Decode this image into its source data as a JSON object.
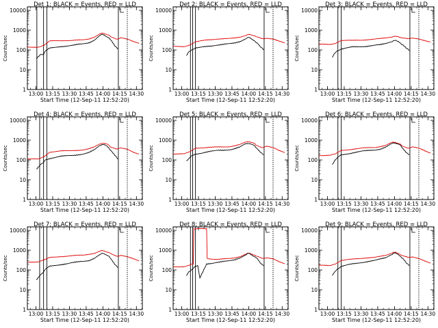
{
  "chart_data": {
    "type": "line",
    "layout": "3x3 grid",
    "shared": {
      "title_template": "Det {n}; BLACK = Events, RED = LLD",
      "xlabel": "Start Time (12-Sep-11 12:52:20)",
      "ylabel": "Counts/sec",
      "y_scale": "log",
      "ylim": [
        1,
        15000
      ],
      "x_units": "minutes after 12:52:20",
      "xlim": [
        0,
        103
      ],
      "x_ticks": [
        {
          "value": 7.67,
          "label": "13:00"
        },
        {
          "value": 22.67,
          "label": "13:15"
        },
        {
          "value": 37.67,
          "label": "13:30"
        },
        {
          "value": 52.67,
          "label": "13:45"
        },
        {
          "value": 67.67,
          "label": "14:00"
        },
        {
          "value": 82.67,
          "label": "14:15"
        },
        {
          "value": 97.67,
          "label": "14:30"
        }
      ],
      "y_ticks": [
        {
          "value": 1,
          "label": "1"
        },
        {
          "value": 10,
          "label": "10"
        },
        {
          "value": 100,
          "label": "100"
        },
        {
          "value": 1000,
          "label": "1000"
        },
        {
          "value": 10000,
          "label": "10000"
        }
      ],
      "legend": [
        {
          "name": "Events",
          "color": "#000000"
        },
        {
          "name": "LLD",
          "color": "#dd0000"
        }
      ],
      "series_colors": {
        "events": "#000000",
        "lld": "#dd0000"
      }
    },
    "panels": [
      {
        "title": "Det 1; BLACK = Events, RED = LLD",
        "vlines": [
          8.5,
          14.5,
          17.5,
          81.5,
          89.5
        ],
        "lld": {
          "x": [
            0,
            10,
            15,
            20,
            30,
            40,
            50,
            55,
            60,
            65,
            68,
            72,
            75,
            80,
            84,
            90,
            95,
            100
          ],
          "values": [
            140,
            140,
            170,
            280,
            300,
            300,
            320,
            360,
            450,
            650,
            700,
            600,
            450,
            350,
            420,
            350,
            260,
            210
          ]
        },
        "events": {
          "x": [
            8,
            12,
            14.5,
            16,
            20,
            30,
            40,
            50,
            55,
            60,
            65,
            68,
            72,
            75,
            79,
            81
          ],
          "values": [
            35,
            60,
            60,
            90,
            120,
            150,
            170,
            200,
            230,
            320,
            550,
            600,
            450,
            300,
            150,
            110
          ]
        }
      },
      {
        "title": "Det 2; BLACK = Events, RED = LLD",
        "vlines": [
          15.5,
          17.5,
          20,
          81.5,
          89.5
        ],
        "lld": {
          "x": [
            0,
            10,
            15,
            20,
            30,
            40,
            50,
            55,
            60,
            65,
            68,
            72,
            75,
            80,
            84,
            90,
            95,
            100
          ],
          "values": [
            150,
            150,
            180,
            250,
            320,
            360,
            370,
            400,
            450,
            550,
            600,
            550,
            450,
            360,
            400,
            360,
            280,
            220
          ]
        },
        "events": {
          "x": [
            12,
            14,
            16,
            20,
            30,
            40,
            50,
            55,
            60,
            65,
            68,
            72,
            75,
            79,
            81
          ],
          "values": [
            50,
            80,
            100,
            120,
            150,
            180,
            200,
            220,
            270,
            380,
            420,
            320,
            220,
            130,
            100
          ]
        }
      },
      {
        "title": "Det 3; BLACK = Events, RED = LLD",
        "vlines": [
          17,
          20,
          81.5,
          89.5
        ],
        "lld": {
          "x": [
            0,
            10,
            15,
            20,
            30,
            40,
            50,
            55,
            60,
            65,
            68,
            72,
            75,
            80,
            84,
            90,
            95,
            100
          ],
          "values": [
            190,
            190,
            220,
            300,
            300,
            320,
            350,
            370,
            400,
            460,
            480,
            450,
            400,
            360,
            400,
            360,
            300,
            250
          ]
        },
        "events": {
          "x": [
            12,
            14,
            16,
            20,
            30,
            40,
            50,
            55,
            60,
            65,
            68,
            72,
            75,
            79,
            81
          ],
          "values": [
            40,
            70,
            90,
            110,
            140,
            150,
            170,
            180,
            210,
            270,
            300,
            250,
            180,
            110,
            90
          ]
        }
      },
      {
        "title": "Det 4; BLACK = Events, RED = LLD",
        "vlines": [
          11,
          14.5,
          17.5,
          81.5,
          89.5
        ],
        "lld": {
          "x": [
            0,
            10,
            15,
            20,
            30,
            40,
            50,
            55,
            60,
            65,
            68,
            72,
            75,
            80,
            84,
            90,
            95,
            100
          ],
          "values": [
            110,
            110,
            150,
            250,
            280,
            300,
            320,
            360,
            450,
            650,
            700,
            600,
            450,
            350,
            400,
            340,
            250,
            200
          ]
        },
        "events": {
          "x": [
            8,
            12,
            14.5,
            16,
            20,
            30,
            40,
            50,
            55,
            60,
            65,
            68,
            72,
            75,
            79,
            81
          ],
          "values": [
            35,
            60,
            70,
            100,
            120,
            150,
            170,
            200,
            230,
            320,
            550,
            620,
            450,
            300,
            150,
            110
          ]
        }
      },
      {
        "title": "Det 5; BLACK = Events, RED = LLD",
        "vlines": [
          15.5,
          17.5,
          20,
          81.5,
          89.5
        ],
        "lld": {
          "x": [
            0,
            10,
            15,
            20,
            30,
            40,
            50,
            55,
            60,
            65,
            68,
            72,
            75,
            80,
            84,
            90,
            95,
            100
          ],
          "values": [
            200,
            200,
            260,
            400,
            420,
            450,
            470,
            520,
            600,
            800,
            850,
            700,
            550,
            420,
            480,
            400,
            300,
            240
          ]
        },
        "events": {
          "x": [
            12,
            14,
            16,
            20,
            30,
            40,
            50,
            55,
            60,
            65,
            68,
            72,
            75,
            79,
            81
          ],
          "values": [
            90,
            120,
            150,
            200,
            250,
            300,
            330,
            370,
            450,
            650,
            700,
            550,
            400,
            220,
            180
          ]
        }
      },
      {
        "title": "Det 6; BLACK = Events, RED = LLD",
        "vlines": [
          17,
          20,
          81.5,
          89.5
        ],
        "lld": {
          "x": [
            0,
            10,
            15,
            20,
            30,
            40,
            50,
            55,
            60,
            65,
            68,
            72,
            75,
            80,
            84,
            90,
            95,
            100
          ],
          "values": [
            170,
            170,
            200,
            300,
            350,
            400,
            430,
            480,
            550,
            750,
            800,
            650,
            500,
            400,
            450,
            380,
            280,
            220
          ]
        },
        "events": {
          "x": [
            12,
            14,
            16,
            20,
            30,
            40,
            50,
            55,
            60,
            65,
            68,
            72,
            75,
            79,
            81
          ],
          "values": [
            60,
            90,
            120,
            180,
            230,
            280,
            320,
            360,
            450,
            650,
            750,
            600,
            400,
            220,
            180
          ]
        }
      },
      {
        "title": "Det 7; BLACK = Events, RED = LLD",
        "vlines": [
          11,
          14.5,
          17.5,
          81.5,
          89.5
        ],
        "lld": {
          "x": [
            0,
            10,
            15,
            20,
            30,
            40,
            50,
            55,
            60,
            65,
            68,
            72,
            75,
            80,
            84,
            90,
            95,
            100
          ],
          "values": [
            250,
            260,
            320,
            420,
            480,
            520,
            560,
            620,
            700,
            900,
            950,
            800,
            650,
            500,
            550,
            460,
            360,
            280
          ]
        },
        "events": {
          "x": [
            8,
            12,
            14.5,
            16,
            20,
            30,
            40,
            50,
            55,
            60,
            65,
            68,
            72,
            75,
            79,
            81
          ],
          "values": [
            30,
            60,
            80,
            110,
            150,
            190,
            230,
            270,
            300,
            400,
            600,
            700,
            550,
            350,
            180,
            130
          ]
        }
      },
      {
        "title": "Det 8; BLACK = Events, RED = LLD",
        "vlines": [
          15.5,
          17.5,
          20,
          81.5,
          89.5
        ],
        "lld": {
          "x": [
            0,
            10,
            15,
            18,
            18.5,
            30,
            30.5,
            32,
            40,
            50,
            55,
            60,
            65,
            68,
            72,
            75,
            80,
            84,
            90,
            95,
            100
          ],
          "values": [
            140,
            150,
            180,
            200,
            12000,
            12000,
            400,
            350,
            350,
            370,
            400,
            480,
            650,
            700,
            600,
            480,
            380,
            420,
            370,
            260,
            200
          ]
        },
        "events": {
          "x": [
            12,
            14,
            16,
            20,
            22,
            24,
            30,
            40,
            50,
            55,
            60,
            65,
            68,
            72,
            75,
            79,
            81
          ],
          "values": [
            50,
            80,
            100,
            150,
            180,
            40,
            200,
            250,
            280,
            320,
            420,
            600,
            680,
            520,
            380,
            200,
            160
          ]
        }
      },
      {
        "title": "Det 9; BLACK = Events, RED = LLD",
        "vlines": [
          17,
          20,
          81.5,
          89.5
        ],
        "lld": {
          "x": [
            0,
            10,
            15,
            20,
            30,
            40,
            50,
            55,
            60,
            65,
            68,
            72,
            75,
            80,
            84,
            90,
            95,
            100
          ],
          "values": [
            170,
            170,
            210,
            300,
            350,
            400,
            430,
            480,
            550,
            720,
            780,
            650,
            520,
            420,
            460,
            380,
            290,
            220
          ]
        },
        "events": {
          "x": [
            12,
            14,
            16,
            20,
            30,
            40,
            50,
            55,
            60,
            65,
            68,
            72,
            75,
            79,
            81
          ],
          "values": [
            50,
            80,
            110,
            150,
            200,
            250,
            300,
            350,
            420,
            620,
            720,
            560,
            380,
            200,
            160
          ]
        }
      }
    ]
  }
}
